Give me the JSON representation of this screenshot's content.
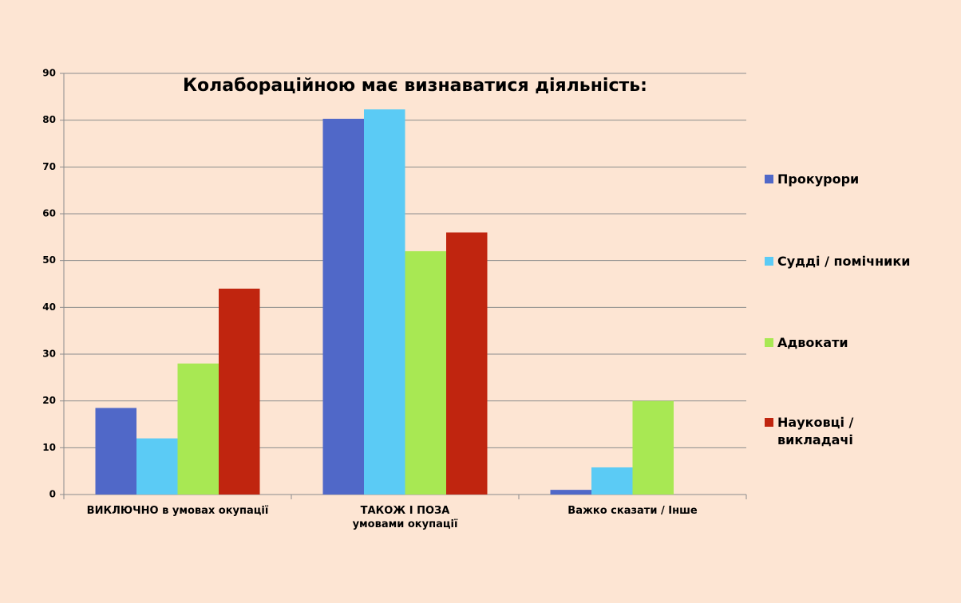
{
  "chart_data": {
    "type": "bar",
    "title": "Колабораційною має визнаватися діяльність:",
    "categories": [
      "ВИКЛЮЧНО в умовах окупації",
      "ТАКОЖ І ПОЗА\nумовами окупації",
      "Важко сказати / Інше"
    ],
    "series": [
      {
        "name": "Прокурори",
        "color": "#5068c8",
        "values": [
          18.5,
          80.3,
          1
        ]
      },
      {
        "name": "Судді / помічники",
        "color": "#5bcbf5",
        "values": [
          12,
          82.3,
          5.8
        ]
      },
      {
        "name": "Адвокати",
        "color": "#a8e853",
        "values": [
          28,
          52,
          20
        ]
      },
      {
        "name": "Науковці /\nвикладачі",
        "color": "#c0250f",
        "values": [
          44,
          56,
          null
        ]
      }
    ],
    "ylim": [
      0,
      90
    ],
    "yticks": [
      0,
      10,
      20,
      30,
      40,
      50,
      60,
      70,
      80,
      90
    ],
    "grid": true,
    "legend": "right"
  }
}
